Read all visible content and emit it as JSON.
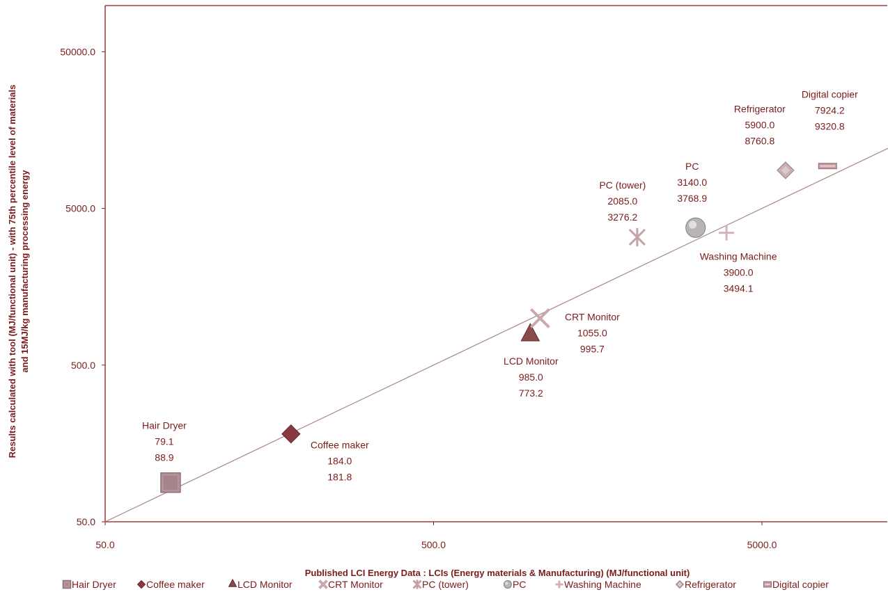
{
  "chart_data": {
    "type": "scatter",
    "x_scale": "log",
    "y_scale": "log",
    "xlim": [
      50,
      20000
    ],
    "ylim": [
      50,
      150000
    ],
    "x_ticks": [
      "50.0",
      "500.0",
      "5000.0"
    ],
    "y_ticks": [
      "50.0",
      "500.0",
      "5000.0",
      "50000.0"
    ],
    "xlabel": "Published LCI Energy Data : LCIs (Energy materials & Manufacturing)  (MJ/functional  unit)",
    "ylabel_line1": "Results calculated  with tool (MJ/functional  unit) - with 75th percentile level of materials",
    "ylabel_line2": "and 15MJ/kg manufacturing processing energy",
    "grid": false,
    "legend_position": "bottom",
    "reference_line": {
      "type": "y=x",
      "color": "#a8868a"
    },
    "points": [
      {
        "name": "Hair Dryer",
        "x": 79.1,
        "y": 88.9,
        "x_label": "79.1",
        "y_label": "88.9",
        "marker": "square",
        "color": "#b49498"
      },
      {
        "name": "Coffee maker",
        "x": 184.0,
        "y": 181.8,
        "x_label": "184.0",
        "y_label": "181.8",
        "marker": "diamond",
        "color": "#8a3a3e"
      },
      {
        "name": "LCD Monitor",
        "x": 985.0,
        "y": 773.2,
        "x_label": "985.0",
        "y_label": "773.2",
        "marker": "triangle",
        "color": "#8c4a4c"
      },
      {
        "name": "CRT Monitor",
        "x": 1055.0,
        "y": 995.7,
        "x_label": "1055.0",
        "y_label": "995.7",
        "marker": "x",
        "color": "#c9a9ad"
      },
      {
        "name": "PC (tower)",
        "x": 2085.0,
        "y": 3276.2,
        "x_label": "2085.0",
        "y_label": "3276.2",
        "marker": "asterisk",
        "color": "#c4a2a8"
      },
      {
        "name": "PC",
        "x": 3140.0,
        "y": 3768.9,
        "x_label": "3140.0",
        "y_label": "3768.9",
        "marker": "circle",
        "color": "#b8b4b8"
      },
      {
        "name": "Washing Machine",
        "x": 3900.0,
        "y": 3494.1,
        "x_label": "3900.0",
        "y_label": "3494.1",
        "marker": "plus",
        "color": "#d4b4ba"
      },
      {
        "name": "Refrigerator",
        "x": 5900.0,
        "y": 8760.8,
        "x_label": "5900.0",
        "y_label": "8760.8",
        "marker": "diamond-light",
        "color": "#c8b0b4"
      },
      {
        "name": "Digital copier",
        "x": 7924.2,
        "y": 9320.8,
        "x_label": "7924.2",
        "y_label": "9320.8",
        "marker": "dash",
        "color": "#c49ca0"
      }
    ],
    "legend": [
      "Hair Dryer",
      "Coffee maker",
      "LCD Monitor",
      "CRT Monitor",
      "PC (tower)",
      "PC",
      "Washing Machine",
      "Refrigerator",
      "Digital copier"
    ]
  },
  "colors": {
    "axis": "#8b1a1a",
    "text": "#7a1c1c",
    "trend": "#a8868a"
  }
}
